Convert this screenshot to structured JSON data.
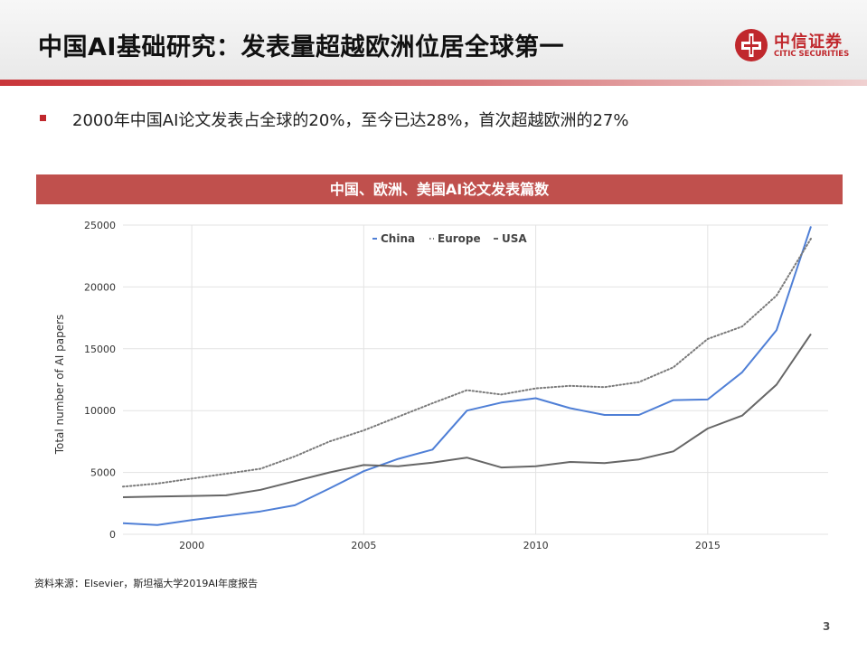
{
  "header": {
    "title": "中国AI基础研究：发表量超越欧洲位居全球第一",
    "logo": {
      "name_cn": "中信证券",
      "name_en": "CITIC SECURITIES",
      "icon": "citic-logo-icon"
    }
  },
  "bullet": {
    "text": "2000年中国AI论文发表占全球的20%，至今已达28%，首次超越欧洲的27%",
    "icon": "square-bullet-icon"
  },
  "chart_banner": "中国、欧洲、美国AI论文发表篇数",
  "chart_data": {
    "type": "line",
    "title": "",
    "xlabel": "",
    "ylabel": "Total number of AI papers",
    "xlim": [
      1998,
      2018.5
    ],
    "ylim": [
      0,
      25000
    ],
    "xticks": [
      2000,
      2005,
      2010,
      2015
    ],
    "yticks": [
      0,
      5000,
      10000,
      15000,
      20000,
      25000
    ],
    "grid": true,
    "legend_position": "top",
    "x": [
      1998,
      1999,
      2000,
      2001,
      2002,
      2003,
      2004,
      2005,
      2006,
      2007,
      2008,
      2009,
      2010,
      2011,
      2012,
      2013,
      2014,
      2015,
      2016,
      2017,
      2018
    ],
    "series": [
      {
        "name": "China",
        "color": "#4f7fd6",
        "style": "solid",
        "values": [
          900,
          750,
          1150,
          1500,
          1850,
          2350,
          3700,
          5100,
          6100,
          6850,
          10000,
          10650,
          11000,
          10200,
          9650,
          9650,
          10850,
          10900,
          13100,
          16500,
          24900
        ]
      },
      {
        "name": "Europe",
        "color": "#7a7a7a",
        "style": "dotted",
        "values": [
          3850,
          4100,
          4500,
          4900,
          5300,
          6300,
          7500,
          8400,
          9500,
          10600,
          11650,
          11300,
          11800,
          12000,
          11900,
          12300,
          13500,
          15800,
          16800,
          19300,
          23900
        ]
      },
      {
        "name": "USA",
        "color": "#666666",
        "style": "solid",
        "values": [
          3000,
          3050,
          3100,
          3150,
          3600,
          4300,
          5000,
          5600,
          5500,
          5800,
          6200,
          5400,
          5500,
          5850,
          5750,
          6050,
          6700,
          8550,
          9600,
          12100,
          16200
        ]
      }
    ]
  },
  "source": "资料来源：Elsevier，斯坦福大学2019AI年度报告",
  "page_number": "3"
}
